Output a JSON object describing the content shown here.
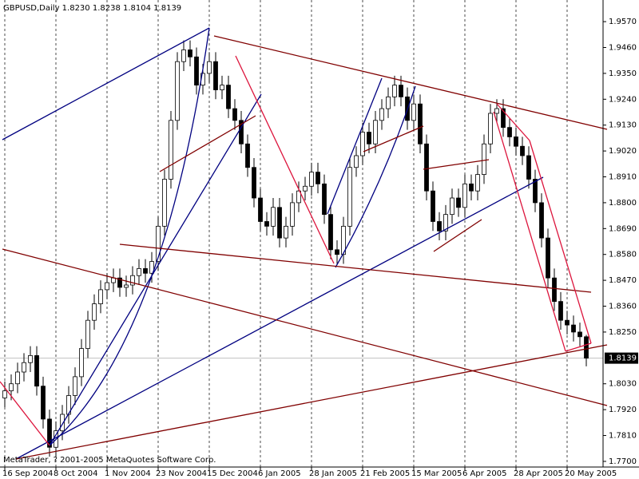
{
  "chart_data": {
    "type": "candlestick",
    "title": "GBPUSD,Daily  1.8230 1.8238 1.8104 1.8139",
    "copyright": "MetaTrader, ? 2001-2005 MetaQuotes Software Corp.",
    "categories": [
      "16 Sep 2004",
      null,
      null,
      null,
      null,
      null,
      null,
      null,
      "8 Oct 2004",
      null,
      null,
      null,
      null,
      null,
      null,
      null,
      "1 Nov 2004",
      null,
      null,
      null,
      null,
      null,
      null,
      null,
      "23 Nov 2004",
      null,
      null,
      null,
      null,
      null,
      null,
      null,
      "15 Dec 2004",
      null,
      null,
      null,
      null,
      null,
      null,
      null,
      "6 Jan 2005",
      null,
      null,
      null,
      null,
      null,
      null,
      null,
      "28 Jan 2005",
      null,
      null,
      null,
      null,
      null,
      null,
      null,
      "21 Feb 2005",
      null,
      null,
      null,
      null,
      null,
      null,
      null,
      "15 Mar 2005",
      null,
      null,
      null,
      null,
      null,
      null,
      null,
      "6 Apr 2005",
      null,
      null,
      null,
      null,
      null,
      null,
      null,
      "28 Apr 2005",
      null,
      null,
      null,
      null,
      null,
      null,
      null,
      "20 May 2005",
      null,
      null,
      null
    ],
    "open": [
      1.797,
      1.8,
      1.803,
      1.808,
      1.812,
      1.815,
      1.802,
      1.788,
      1.776,
      1.783,
      1.79,
      1.798,
      1.806,
      1.818,
      1.83,
      1.837,
      1.843,
      1.846,
      1.848,
      1.844,
      1.845,
      1.849,
      1.852,
      1.85,
      1.855,
      1.87,
      1.89,
      1.915,
      1.94,
      1.945,
      1.942,
      1.93,
      1.935,
      1.94,
      1.928,
      1.93,
      1.92,
      1.915,
      1.905,
      1.895,
      1.882,
      1.872,
      1.87,
      1.878,
      1.865,
      1.87,
      1.88,
      1.885,
      1.887,
      1.893,
      1.888,
      1.875,
      1.86,
      1.858,
      1.87,
      1.895,
      1.9,
      1.91,
      1.905,
      1.915,
      1.92,
      1.925,
      1.93,
      1.925,
      1.915,
      1.922,
      1.905,
      1.885,
      1.872,
      1.868,
      1.875,
      1.882,
      1.878,
      1.888,
      1.885,
      1.892,
      1.905,
      1.918,
      1.92,
      1.912,
      1.908,
      1.904,
      1.9,
      1.89,
      1.88,
      1.865,
      1.848,
      1.838,
      1.83,
      1.828,
      1.825,
      1.823
    ],
    "high": [
      1.804,
      1.807,
      1.812,
      1.816,
      1.819,
      1.819,
      1.806,
      1.792,
      1.787,
      1.794,
      1.802,
      1.81,
      1.822,
      1.834,
      1.841,
      1.847,
      1.85,
      1.852,
      1.852,
      1.849,
      1.853,
      1.856,
      1.856,
      1.859,
      1.874,
      1.894,
      1.919,
      1.944,
      1.949,
      1.949,
      1.946,
      1.939,
      1.944,
      1.944,
      1.934,
      1.934,
      1.924,
      1.919,
      1.909,
      1.899,
      1.886,
      1.876,
      1.882,
      1.882,
      1.874,
      1.884,
      1.889,
      1.891,
      1.897,
      1.897,
      1.892,
      1.879,
      1.864,
      1.874,
      1.899,
      1.904,
      1.914,
      1.914,
      1.919,
      1.924,
      1.929,
      1.934,
      1.934,
      1.929,
      1.926,
      1.926,
      1.909,
      1.889,
      1.876,
      1.879,
      1.886,
      1.886,
      1.892,
      1.892,
      1.896,
      1.909,
      1.922,
      1.924,
      1.924,
      1.916,
      1.912,
      1.908,
      1.904,
      1.894,
      1.884,
      1.869,
      1.852,
      1.842,
      1.834,
      1.832,
      1.829,
      1.8238
    ],
    "low": [
      1.793,
      1.796,
      1.799,
      1.804,
      1.808,
      1.798,
      1.784,
      1.772,
      1.772,
      1.779,
      1.786,
      1.794,
      1.802,
      1.814,
      1.826,
      1.833,
      1.839,
      1.842,
      1.84,
      1.84,
      1.841,
      1.845,
      1.846,
      1.846,
      1.851,
      1.866,
      1.886,
      1.911,
      1.936,
      1.938,
      1.926,
      1.926,
      1.931,
      1.924,
      1.924,
      1.916,
      1.911,
      1.901,
      1.891,
      1.878,
      1.868,
      1.866,
      1.866,
      1.861,
      1.861,
      1.866,
      1.876,
      1.881,
      1.883,
      1.884,
      1.871,
      1.856,
      1.854,
      1.854,
      1.866,
      1.891,
      1.896,
      1.901,
      1.901,
      1.911,
      1.916,
      1.921,
      1.921,
      1.911,
      1.911,
      1.901,
      1.881,
      1.868,
      1.864,
      1.864,
      1.871,
      1.874,
      1.874,
      1.881,
      1.881,
      1.888,
      1.901,
      1.914,
      1.908,
      1.904,
      1.9,
      1.896,
      1.886,
      1.876,
      1.861,
      1.844,
      1.834,
      1.826,
      1.824,
      1.821,
      1.819,
      1.8104
    ],
    "close": [
      1.8,
      1.803,
      1.808,
      1.812,
      1.815,
      1.802,
      1.788,
      1.776,
      1.783,
      1.79,
      1.798,
      1.806,
      1.818,
      1.83,
      1.837,
      1.843,
      1.846,
      1.848,
      1.844,
      1.845,
      1.849,
      1.852,
      1.85,
      1.855,
      1.87,
      1.89,
      1.915,
      1.94,
      1.945,
      1.942,
      1.93,
      1.935,
      1.94,
      1.928,
      1.93,
      1.92,
      1.915,
      1.905,
      1.895,
      1.882,
      1.872,
      1.87,
      1.878,
      1.865,
      1.87,
      1.88,
      1.885,
      1.887,
      1.893,
      1.888,
      1.875,
      1.86,
      1.858,
      1.87,
      1.895,
      1.9,
      1.91,
      1.905,
      1.915,
      1.92,
      1.925,
      1.93,
      1.925,
      1.915,
      1.922,
      1.905,
      1.885,
      1.872,
      1.868,
      1.875,
      1.882,
      1.878,
      1.888,
      1.885,
      1.892,
      1.905,
      1.918,
      1.92,
      1.912,
      1.908,
      1.904,
      1.9,
      1.89,
      1.88,
      1.865,
      1.848,
      1.838,
      1.83,
      1.828,
      1.825,
      1.823,
      1.8139
    ],
    "current_price": 1.8139,
    "bull_color": "#ffffff",
    "bear_color": "#000000",
    "ylim": [
      1.7676,
      1.9662
    ],
    "yticks": [
      {
        "value": 1.957,
        "label": "1.9570"
      },
      {
        "value": 1.946,
        "label": "1.9460"
      },
      {
        "value": 1.935,
        "label": "1.9350"
      },
      {
        "value": 1.924,
        "label": "1.9240"
      },
      {
        "value": 1.913,
        "label": "1.9130"
      },
      {
        "value": 1.902,
        "label": "1.9020"
      },
      {
        "value": 1.891,
        "label": "1.8910"
      },
      {
        "value": 1.88,
        "label": "1.8800"
      },
      {
        "value": 1.869,
        "label": "1.8690"
      },
      {
        "value": 1.858,
        "label": "1.8580"
      },
      {
        "value": 1.847,
        "label": "1.8470"
      },
      {
        "value": 1.836,
        "label": "1.8360"
      },
      {
        "value": 1.825,
        "label": "1.8250"
      },
      {
        "value": 1.803,
        "label": "1.8030"
      },
      {
        "value": 1.792,
        "label": "1.7920"
      },
      {
        "value": 1.781,
        "label": "1.7810"
      },
      {
        "value": 1.77,
        "label": "1.7700"
      }
    ],
    "grid": true
  }
}
